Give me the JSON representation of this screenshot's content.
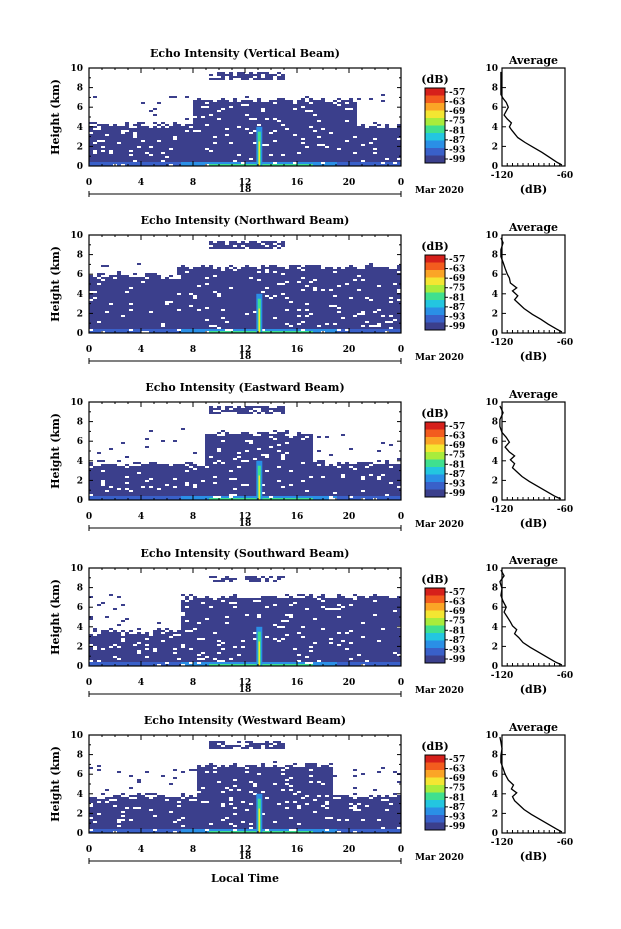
{
  "chart_data": [
    {
      "type": "heatmap",
      "title": "Echo Intensity (Vertical Beam)",
      "ylabel": "Height (km)",
      "ylim": [
        0,
        10
      ],
      "yticks": [
        "0",
        "2",
        "4",
        "6",
        "8",
        "10"
      ],
      "xticks": [
        "0",
        "4",
        "8",
        "12",
        "16",
        "20",
        "0"
      ],
      "xlim": [
        0,
        24
      ],
      "date_label": "18",
      "month_label": "Mar 2020",
      "colorbar": {
        "title": "(dB)",
        "ticks": [
          "-57",
          "-63",
          "-69",
          "-75",
          "-81",
          "-87",
          "-93",
          "-99"
        ]
      },
      "layers": {
        "lower_top_km": 4.3,
        "upper_bottom_km": 5.0,
        "upper_top_km": 6.8,
        "upper_start_h": 7.8,
        "upper_end_h": 20.5,
        "cirrus_km": 9.3,
        "spike_h": 13.1
      },
      "profile": {
        "title": "Average",
        "xlabel": "(dB)",
        "xlim": [
          -120,
          -60
        ],
        "xticks": [
          "-120",
          "-60"
        ],
        "ylim": [
          0,
          10
        ],
        "points": [
          [
            -63,
            0.1
          ],
          [
            -68,
            0.4
          ],
          [
            -75,
            0.9
          ],
          [
            -82,
            1.4
          ],
          [
            -90,
            1.9
          ],
          [
            -98,
            2.4
          ],
          [
            -105,
            2.9
          ],
          [
            -108,
            3.3
          ],
          [
            -111,
            3.7
          ],
          [
            -113,
            4.0
          ],
          [
            -111,
            4.4
          ],
          [
            -115,
            4.8
          ],
          [
            -118,
            5.2
          ],
          [
            -116,
            5.6
          ],
          [
            -114,
            6.0
          ],
          [
            -116,
            6.5
          ],
          [
            -119,
            6.9
          ],
          [
            -121,
            7.3
          ],
          [
            -121,
            8.0
          ],
          [
            -121,
            8.8
          ],
          [
            -121,
            9.6
          ]
        ]
      }
    },
    {
      "type": "heatmap",
      "title": "Echo Intensity (Northward Beam)",
      "ylabel": "Height (km)",
      "ylim": [
        0,
        10
      ],
      "yticks": [
        "0",
        "2",
        "4",
        "6",
        "8",
        "10"
      ],
      "xticks": [
        "0",
        "4",
        "8",
        "12",
        "16",
        "20",
        "0"
      ],
      "xlim": [
        0,
        24
      ],
      "date_label": "18",
      "month_label": "Mar 2020",
      "colorbar": {
        "title": "(dB)",
        "ticks": [
          "-57",
          "-63",
          "-69",
          "-75",
          "-81",
          "-87",
          "-93",
          "-99"
        ]
      },
      "layers": {
        "lower_top_km": 6.0,
        "upper_bottom_km": 4.6,
        "upper_top_km": 6.8,
        "upper_start_h": 6.5,
        "upper_end_h": 24.0,
        "cirrus_km": 9.1,
        "spike_h": 13.1
      },
      "profile": {
        "title": "Average",
        "xlabel": "(dB)",
        "xlim": [
          -120,
          -60
        ],
        "xticks": [
          "-120",
          "-60"
        ],
        "ylim": [
          0,
          10
        ],
        "points": [
          [
            -63,
            0.1
          ],
          [
            -68,
            0.4
          ],
          [
            -76,
            0.9
          ],
          [
            -83,
            1.4
          ],
          [
            -91,
            1.9
          ],
          [
            -99,
            2.5
          ],
          [
            -104,
            3.0
          ],
          [
            -108,
            3.4
          ],
          [
            -105,
            3.8
          ],
          [
            -110,
            4.3
          ],
          [
            -106,
            4.6
          ],
          [
            -112,
            5.1
          ],
          [
            -113,
            5.6
          ],
          [
            -115,
            6.0
          ],
          [
            -117,
            6.6
          ],
          [
            -119,
            7.2
          ],
          [
            -121,
            7.8
          ],
          [
            -121,
            8.5
          ],
          [
            -119,
            9.2
          ],
          [
            -121,
            9.7
          ]
        ]
      }
    },
    {
      "type": "heatmap",
      "title": "Echo Intensity (Eastward Beam)",
      "ylabel": "Height (km)",
      "ylim": [
        0,
        10
      ],
      "yticks": [
        "0",
        "2",
        "4",
        "6",
        "8",
        "10"
      ],
      "xticks": [
        "0",
        "4",
        "8",
        "12",
        "16",
        "20",
        "0"
      ],
      "xlim": [
        0,
        24
      ],
      "date_label": "18",
      "month_label": "Mar 2020",
      "colorbar": {
        "title": "(dB)",
        "ticks": [
          "-57",
          "-63",
          "-69",
          "-75",
          "-81",
          "-87",
          "-93",
          "-99"
        ]
      },
      "layers": {
        "lower_top_km": 3.8,
        "upper_bottom_km": 4.6,
        "upper_top_km": 6.9,
        "upper_start_h": 8.8,
        "upper_end_h": 17.2,
        "cirrus_km": 9.3,
        "spike_h": 13.1
      },
      "profile": {
        "title": "Average",
        "xlabel": "(dB)",
        "xlim": [
          -120,
          -60
        ],
        "xticks": [
          "-120",
          "-60"
        ],
        "ylim": [
          0,
          10
        ],
        "points": [
          [
            -64,
            0.1
          ],
          [
            -70,
            0.4
          ],
          [
            -78,
            0.9
          ],
          [
            -86,
            1.4
          ],
          [
            -94,
            1.9
          ],
          [
            -101,
            2.4
          ],
          [
            -106,
            2.9
          ],
          [
            -110,
            3.3
          ],
          [
            -108,
            3.7
          ],
          [
            -112,
            4.1
          ],
          [
            -108,
            4.5
          ],
          [
            -113,
            4.9
          ],
          [
            -117,
            5.4
          ],
          [
            -113,
            5.9
          ],
          [
            -116,
            6.4
          ],
          [
            -120,
            6.9
          ],
          [
            -122,
            7.5
          ],
          [
            -122,
            8.2
          ],
          [
            -119,
            8.9
          ],
          [
            -122,
            9.6
          ]
        ]
      }
    },
    {
      "type": "heatmap",
      "title": "Echo Intensity (Southward Beam)",
      "ylabel": "Height (km)",
      "ylim": [
        0,
        10
      ],
      "yticks": [
        "0",
        "2",
        "4",
        "6",
        "8",
        "10"
      ],
      "xticks": [
        "0",
        "4",
        "8",
        "12",
        "16",
        "20",
        "0"
      ],
      "xlim": [
        0,
        24
      ],
      "date_label": "18",
      "month_label": "Mar 2020",
      "colorbar": {
        "title": "(dB)",
        "ticks": [
          "-57",
          "-63",
          "-69",
          "-75",
          "-81",
          "-87",
          "-93",
          "-99"
        ]
      },
      "layers": {
        "lower_top_km": 3.6,
        "upper_bottom_km": 4.4,
        "upper_top_km": 7.2,
        "upper_start_h": 6.8,
        "upper_end_h": 24.0,
        "cirrus_km": 9.0,
        "spike_h": 13.1
      },
      "profile": {
        "title": "Average",
        "xlabel": "(dB)",
        "xlim": [
          -120,
          -60
        ],
        "xticks": [
          "-120",
          "-60"
        ],
        "ylim": [
          0,
          10
        ],
        "points": [
          [
            -63,
            0.1
          ],
          [
            -69,
            0.4
          ],
          [
            -77,
            0.9
          ],
          [
            -85,
            1.4
          ],
          [
            -93,
            1.9
          ],
          [
            -100,
            2.4
          ],
          [
            -104,
            2.9
          ],
          [
            -108,
            3.3
          ],
          [
            -106,
            3.7
          ],
          [
            -110,
            4.1
          ],
          [
            -112,
            4.5
          ],
          [
            -115,
            5.0
          ],
          [
            -118,
            5.5
          ],
          [
            -116,
            6.0
          ],
          [
            -119,
            6.6
          ],
          [
            -121,
            7.2
          ],
          [
            -120,
            7.9
          ],
          [
            -122,
            8.6
          ],
          [
            -118,
            9.2
          ],
          [
            -121,
            9.8
          ]
        ]
      }
    },
    {
      "type": "heatmap",
      "title": "Echo Intensity (Westward Beam)",
      "ylabel": "Height (km)",
      "xlabel": "Local Time",
      "ylim": [
        0,
        10
      ],
      "yticks": [
        "0",
        "2",
        "4",
        "6",
        "8",
        "10"
      ],
      "xticks": [
        "0",
        "4",
        "8",
        "12",
        "16",
        "20",
        "0"
      ],
      "xlim": [
        0,
        24
      ],
      "date_label": "18",
      "month_label": "Mar 2020",
      "colorbar": {
        "title": "(dB)",
        "ticks": [
          "-57",
          "-63",
          "-69",
          "-75",
          "-81",
          "-87",
          "-93",
          "-99"
        ]
      },
      "layers": {
        "lower_top_km": 3.8,
        "upper_bottom_km": 4.6,
        "upper_top_km": 7.0,
        "upper_start_h": 8.3,
        "upper_end_h": 18.5,
        "cirrus_km": 9.1,
        "spike_h": 13.1
      },
      "profile": {
        "title": "Average",
        "xlabel": "(dB)",
        "xlim": [
          -120,
          -60
        ],
        "xticks": [
          "-120",
          "-60"
        ],
        "ylim": [
          0,
          10
        ],
        "points": [
          [
            -63,
            0.1
          ],
          [
            -68,
            0.4
          ],
          [
            -76,
            0.9
          ],
          [
            -84,
            1.4
          ],
          [
            -92,
            1.9
          ],
          [
            -99,
            2.4
          ],
          [
            -104,
            2.9
          ],
          [
            -108,
            3.3
          ],
          [
            -110,
            3.7
          ],
          [
            -106,
            4.1
          ],
          [
            -111,
            4.5
          ],
          [
            -109,
            4.9
          ],
          [
            -114,
            5.4
          ],
          [
            -117,
            6.0
          ],
          [
            -119,
            6.6
          ],
          [
            -121,
            7.2
          ],
          [
            -121,
            7.9
          ],
          [
            -120,
            8.6
          ],
          [
            -121,
            9.3
          ],
          [
            -122,
            9.8
          ]
        ]
      }
    }
  ],
  "colors": {
    "colormap": [
      "#3b3f8c",
      "#3960c9",
      "#2a8fe6",
      "#23c6e0",
      "#3fe08f",
      "#a8ec3c",
      "#f4e632",
      "#fba526",
      "#f35c1e",
      "#d6201b"
    ],
    "background": "#ffffff"
  }
}
